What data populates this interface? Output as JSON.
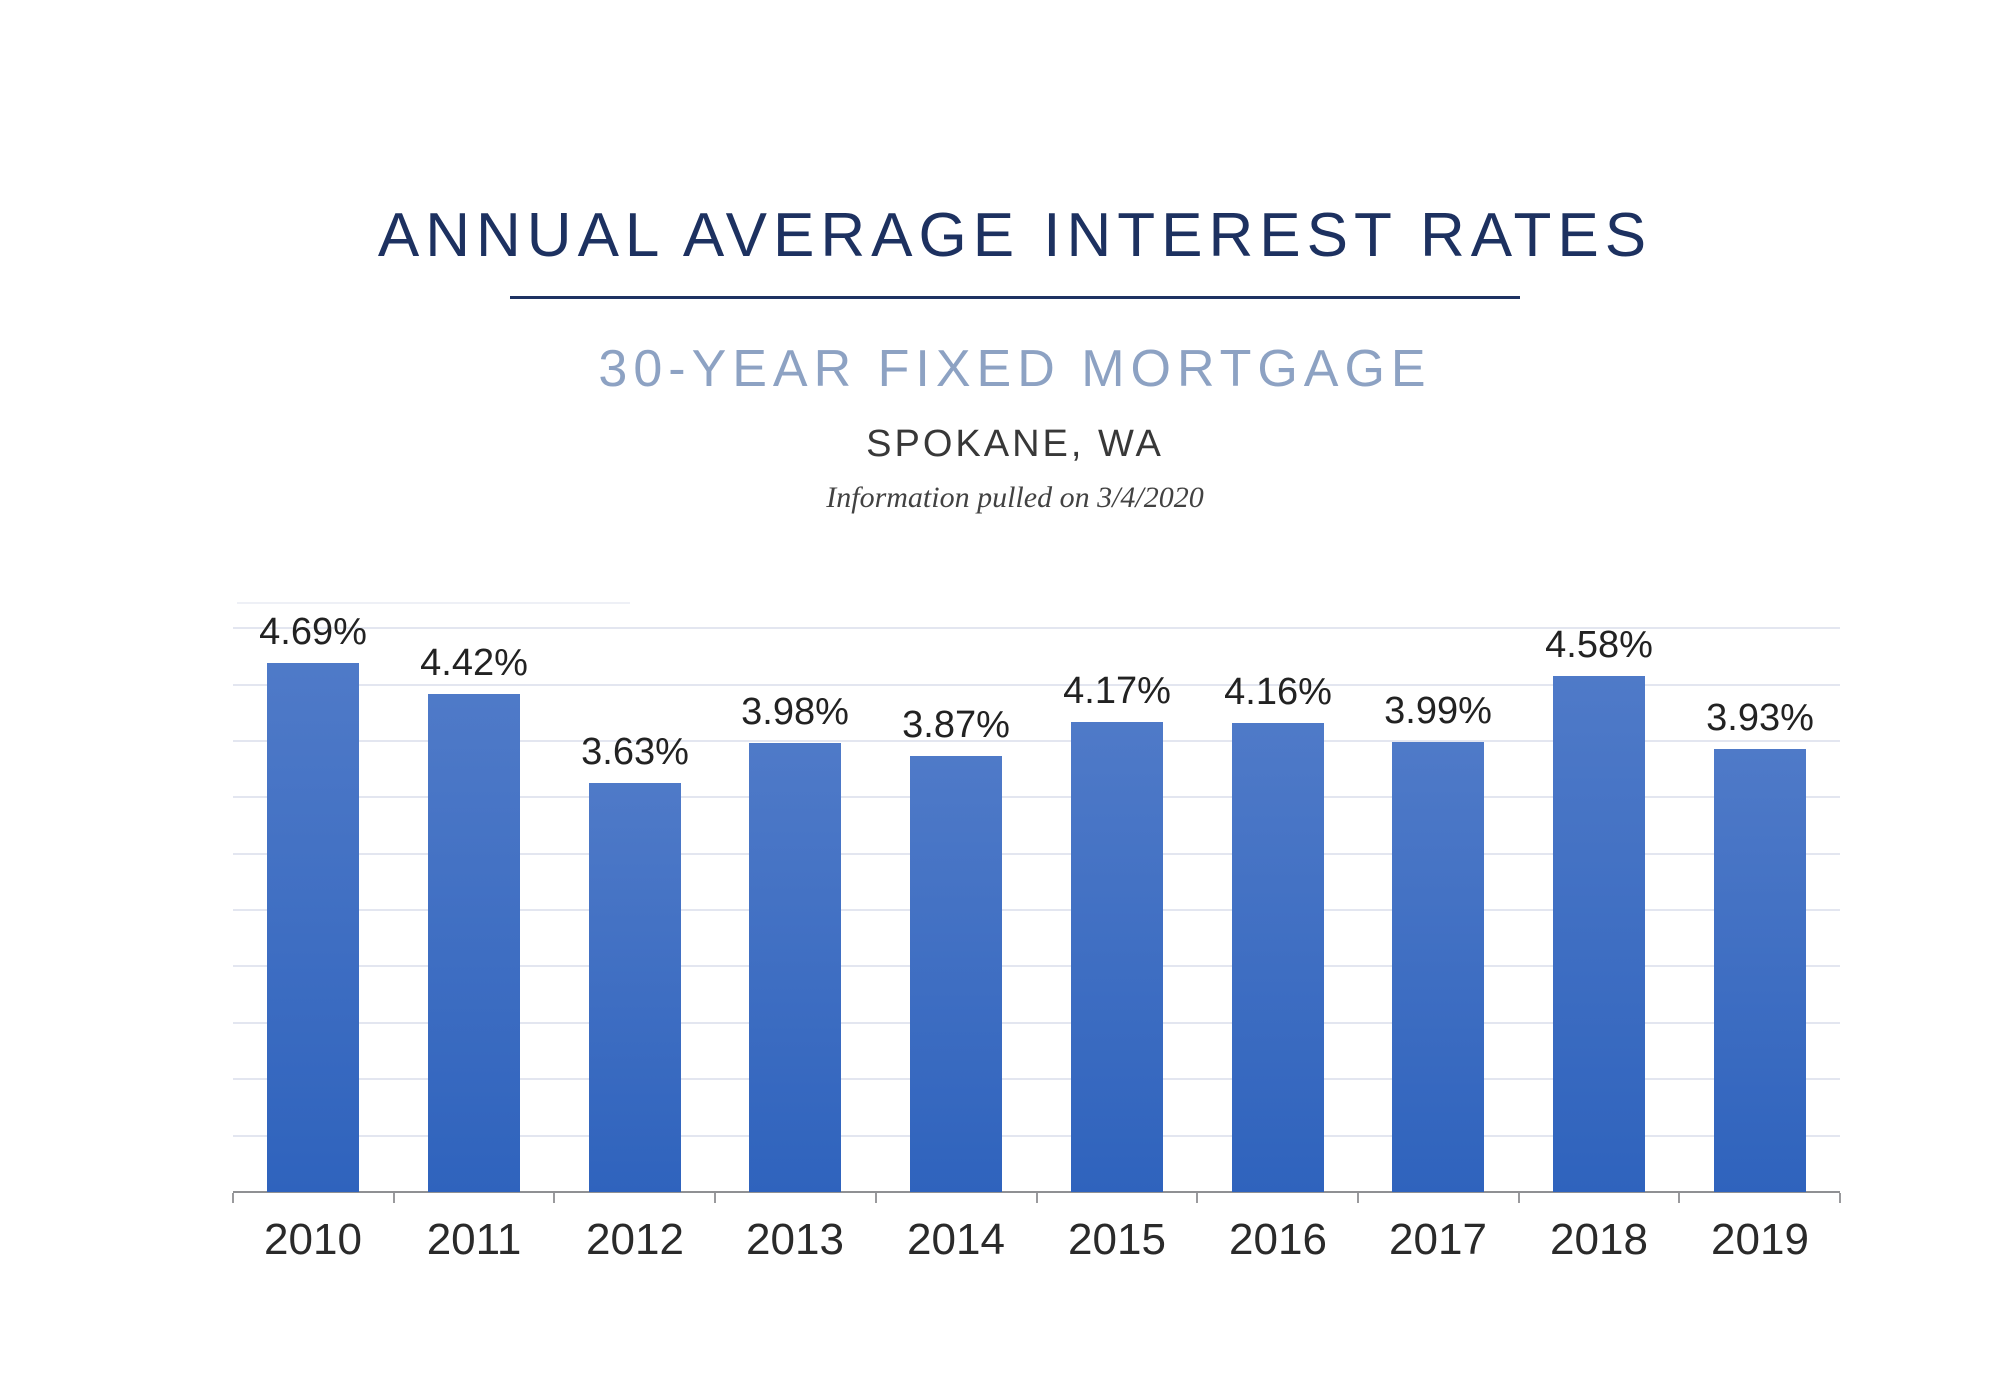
{
  "header": {
    "title": "ANNUAL AVERAGE INTEREST RATES",
    "subtitle": "30-YEAR FIXED MORTGAGE",
    "location": "SPOKANE, WA",
    "note": "Information pulled on 3/4/2020"
  },
  "colors": {
    "title_navy": "#1d3160",
    "subtitle_blue_gray": "#8da2c3",
    "bar_gradient_top": "#4f7ac8",
    "bar_gradient_bottom": "#2f63bd",
    "gridline": "#e3e6f0",
    "partial_top_gridline": "#eef0f6",
    "axis": "#8f9093",
    "label_text": "#222222"
  },
  "chart_data": {
    "type": "bar",
    "title": "",
    "xlabel": "",
    "ylabel": "",
    "categories": [
      "2010",
      "2011",
      "2012",
      "2013",
      "2014",
      "2015",
      "2016",
      "2017",
      "2018",
      "2019"
    ],
    "values": [
      4.69,
      4.42,
      3.63,
      3.98,
      3.87,
      4.17,
      4.16,
      3.99,
      4.58,
      3.93
    ],
    "data_labels": [
      "4.69%",
      "4.42%",
      "3.63%",
      "3.98%",
      "3.87%",
      "4.17%",
      "4.16%",
      "3.99%",
      "4.58%",
      "3.93%"
    ],
    "unit": "%",
    "ylim": [
      0,
      5.25
    ],
    "gridline_step": 0.5,
    "gridline_max": 5.0,
    "grid": "horizontal",
    "legend": "none",
    "y_axis_labels_visible": false
  }
}
